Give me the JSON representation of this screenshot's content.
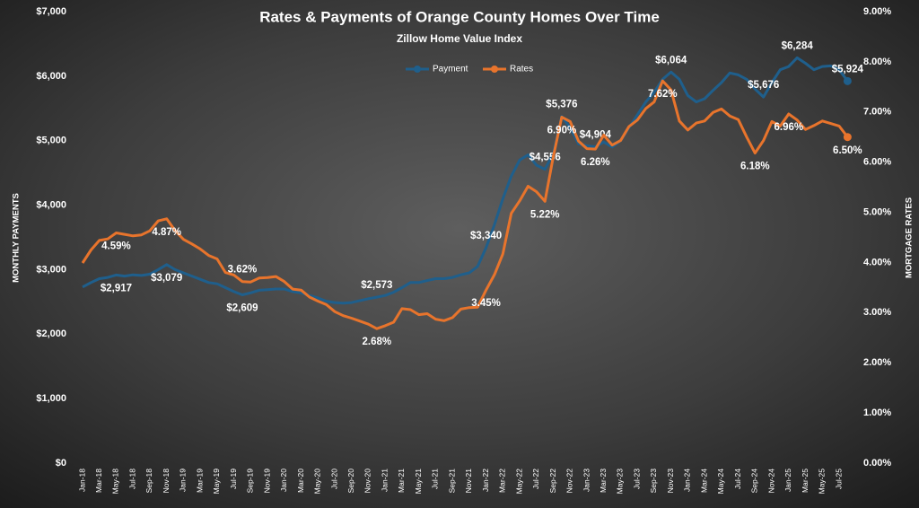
{
  "chart_data": {
    "type": "line",
    "title": "Rates & Payments of Orange County Homes Over Time",
    "subtitle": "Zillow Home Value Index",
    "y_label": "MONTHLY PAYMENTS",
    "y2_label": "MORTGAGE RATES",
    "legend": "top",
    "categories": [
      "Jan-18",
      null,
      "Mar-18",
      null,
      "May-18",
      null,
      "Jul-18",
      null,
      "Sep-18",
      null,
      "Nov-18",
      null,
      "Jan-19",
      null,
      "Mar-19",
      null,
      "May-19",
      null,
      "Jul-19",
      null,
      "Sep-19",
      null,
      "Nov-19",
      null,
      "Jan-20",
      null,
      "Mar-20",
      null,
      "May-20",
      null,
      "Jul-20",
      null,
      "Sep-20",
      null,
      "Nov-20",
      null,
      "Jan-21",
      null,
      "Mar-21",
      null,
      "May-21",
      null,
      "Jul-21",
      null,
      "Sep-21",
      null,
      "Nov-21",
      null,
      "Jan-22",
      null,
      "Mar-22",
      null,
      "May-22",
      null,
      "Jul-22",
      null,
      "Sep-22",
      null,
      "Nov-22",
      null,
      "Jan-23",
      null,
      "Mar-23",
      null,
      "May-23",
      null,
      "Jul-23",
      null,
      "Sep-23",
      null,
      "Nov-23",
      null,
      "Jan-24",
      null,
      "Mar-24",
      null,
      "May-24",
      null,
      "Jul-24",
      null,
      "Sep-24",
      null,
      "Nov-24",
      null,
      "Jan-25",
      null,
      "Mar-25",
      null,
      "May-25",
      null,
      "Jul-25",
      null
    ],
    "ylim": [
      0,
      7000
    ],
    "yticks": [
      {
        "value": 0,
        "label": "$0"
      },
      {
        "value": 1000,
        "label": "$1,000"
      },
      {
        "value": 2000,
        "label": "$2,000"
      },
      {
        "value": 3000,
        "label": "$3,000"
      },
      {
        "value": 4000,
        "label": "$4,000"
      },
      {
        "value": 5000,
        "label": "$5,000"
      },
      {
        "value": 6000,
        "label": "$6,000"
      },
      {
        "value": 7000,
        "label": "$7,000"
      }
    ],
    "y2lim": [
      0,
      9
    ],
    "y2ticks": [
      {
        "value": 0,
        "label": "0.00%"
      },
      {
        "value": 1,
        "label": "1.00%"
      },
      {
        "value": 2,
        "label": "2.00%"
      },
      {
        "value": 3,
        "label": "3.00%"
      },
      {
        "value": 4,
        "label": "4.00%"
      },
      {
        "value": 5,
        "label": "5.00%"
      },
      {
        "value": 6,
        "label": "6.00%"
      },
      {
        "value": 7,
        "label": "7.00%"
      },
      {
        "value": 8,
        "label": "8.00%"
      },
      {
        "value": 9,
        "label": "9.00%"
      }
    ],
    "series": [
      {
        "name": "Payment",
        "color": "#1f5f8c",
        "axis": "y",
        "values": [
          2730,
          2800,
          2860,
          2880,
          2917,
          2900,
          2920,
          2910,
          2930,
          3000,
          3079,
          3000,
          2950,
          2900,
          2850,
          2800,
          2780,
          2720,
          2660,
          2609,
          2640,
          2680,
          2690,
          2700,
          2700,
          2660,
          2640,
          2600,
          2560,
          2510,
          2490,
          2480,
          2490,
          2520,
          2550,
          2573,
          2600,
          2650,
          2720,
          2800,
          2800,
          2830,
          2860,
          2860,
          2880,
          2920,
          2950,
          3050,
          3340,
          3700,
          4100,
          4450,
          4700,
          4780,
          4620,
          4556,
          4800,
          5376,
          5200,
          4950,
          4920,
          4904,
          4980,
          4900,
          5000,
          5200,
          5400,
          5600,
          5750,
          5950,
          6064,
          5950,
          5700,
          5600,
          5650,
          5780,
          5900,
          6050,
          6020,
          5950,
          5800,
          5676,
          5900,
          6100,
          6150,
          6284,
          6200,
          6100,
          6150,
          6160,
          6100,
          5924
        ],
        "value_labels": [
          null,
          null,
          null,
          null,
          "$2,917",
          null,
          null,
          null,
          null,
          null,
          "$3,079",
          null,
          null,
          null,
          null,
          null,
          null,
          null,
          null,
          "$2,609",
          null,
          null,
          null,
          null,
          null,
          null,
          null,
          null,
          null,
          null,
          null,
          null,
          null,
          null,
          null,
          "$2,573",
          null,
          null,
          null,
          null,
          null,
          null,
          null,
          null,
          null,
          null,
          null,
          null,
          "$3,340",
          null,
          null,
          null,
          null,
          null,
          null,
          "$4,556",
          null,
          "$5,376",
          null,
          null,
          null,
          "$4,904",
          null,
          null,
          null,
          null,
          null,
          null,
          null,
          null,
          "$6,064",
          null,
          null,
          null,
          null,
          null,
          null,
          null,
          null,
          null,
          null,
          "$5,676",
          null,
          null,
          null,
          "$6,284",
          null,
          null,
          null,
          null,
          null,
          "$5,924"
        ]
      },
      {
        "name": "Rates",
        "color": "#e8742c",
        "axis": "y2",
        "values": [
          3.99,
          4.25,
          4.44,
          4.47,
          4.59,
          4.56,
          4.53,
          4.55,
          4.63,
          4.83,
          4.87,
          4.64,
          4.46,
          4.37,
          4.27,
          4.14,
          4.07,
          3.8,
          3.75,
          3.62,
          3.61,
          3.69,
          3.7,
          3.72,
          3.62,
          3.47,
          3.45,
          3.31,
          3.23,
          3.16,
          3.02,
          2.94,
          2.89,
          2.83,
          2.77,
          2.68,
          2.74,
          2.81,
          3.08,
          3.06,
          2.96,
          2.98,
          2.87,
          2.84,
          2.9,
          3.07,
          3.1,
          3.11,
          3.45,
          3.76,
          4.17,
          4.98,
          5.23,
          5.52,
          5.41,
          5.22,
          6.11,
          6.9,
          6.81,
          6.42,
          6.27,
          6.26,
          6.54,
          6.34,
          6.43,
          6.71,
          6.84,
          7.07,
          7.2,
          7.62,
          7.44,
          6.82,
          6.64,
          6.78,
          6.82,
          6.99,
          7.06,
          6.92,
          6.85,
          6.5,
          6.18,
          6.43,
          6.81,
          6.72,
          6.96,
          6.84,
          6.65,
          6.73,
          6.82,
          6.77,
          6.72,
          6.5
        ],
        "value_labels": [
          null,
          null,
          null,
          null,
          "4.59%",
          null,
          null,
          null,
          null,
          null,
          "4.87%",
          null,
          null,
          null,
          null,
          null,
          null,
          null,
          null,
          "3.62%",
          null,
          null,
          null,
          null,
          null,
          null,
          null,
          null,
          null,
          null,
          null,
          null,
          null,
          null,
          null,
          "2.68%",
          null,
          null,
          null,
          null,
          null,
          null,
          null,
          null,
          null,
          null,
          null,
          null,
          "3.45%",
          null,
          null,
          null,
          null,
          null,
          null,
          "5.22%",
          null,
          "6.90%",
          null,
          null,
          null,
          "6.26%",
          null,
          null,
          null,
          null,
          null,
          null,
          null,
          "7.62%",
          null,
          null,
          null,
          null,
          null,
          null,
          null,
          null,
          null,
          null,
          "6.18%",
          null,
          null,
          null,
          "6.96%",
          null,
          null,
          null,
          null,
          null,
          null,
          "6.50%"
        ]
      }
    ]
  }
}
